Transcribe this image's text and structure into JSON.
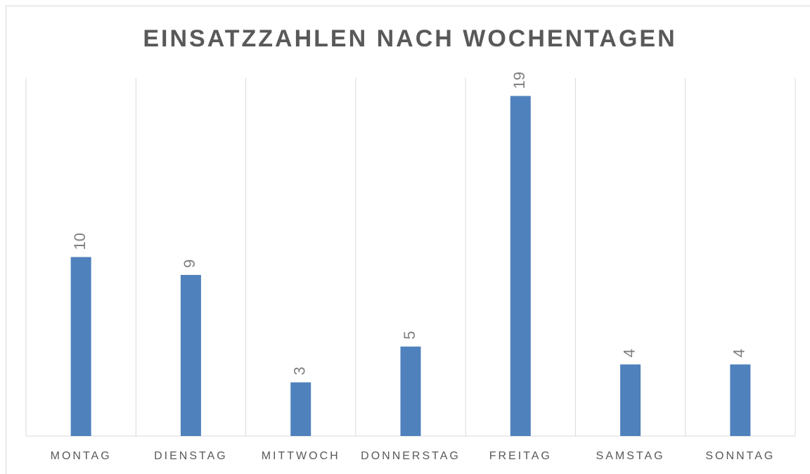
{
  "chart_data": {
    "type": "bar",
    "title": "EINSATZZAHLEN NACH WOCHENTAGEN",
    "categories": [
      "MONTAG",
      "DIENSTAG",
      "MITTWOCH",
      "DONNERSTAG",
      "FREITAG",
      "SAMSTAG",
      "SONNTAG"
    ],
    "values": [
      10,
      9,
      3,
      5,
      19,
      4,
      4
    ],
    "color": "#4f81bd",
    "ylim": [
      0,
      20
    ]
  }
}
